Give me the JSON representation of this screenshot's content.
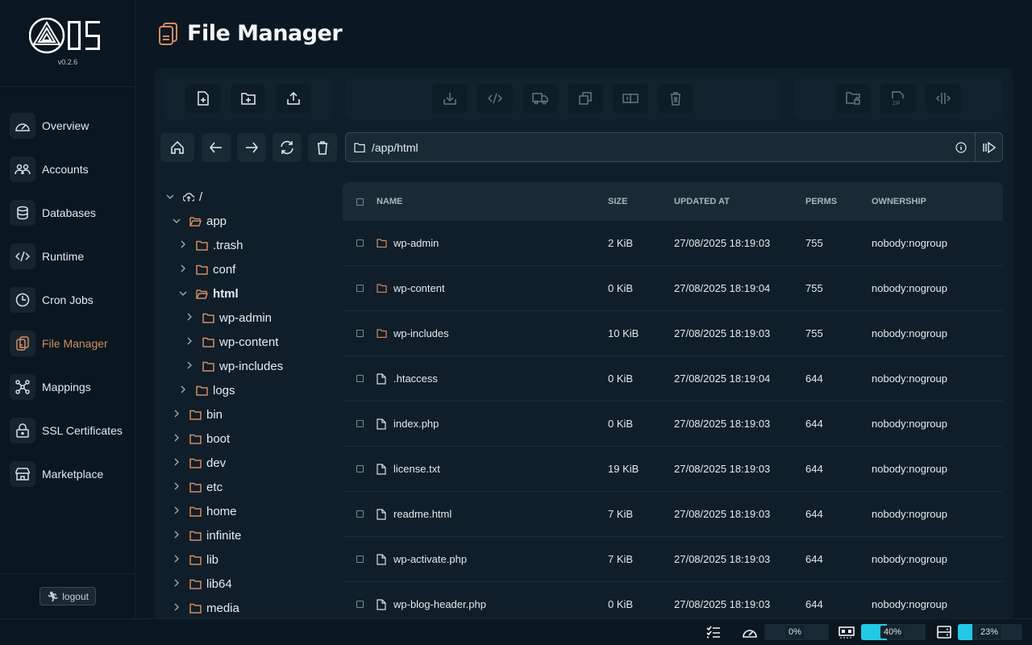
{
  "app": {
    "version": "v0.2.6",
    "logo_text": "OS"
  },
  "sidebar": {
    "items": [
      {
        "label": "Overview",
        "icon": "gauge-icon"
      },
      {
        "label": "Accounts",
        "icon": "users-icon"
      },
      {
        "label": "Databases",
        "icon": "database-icon"
      },
      {
        "label": "Runtime",
        "icon": "code-icon"
      },
      {
        "label": "Cron Jobs",
        "icon": "clock-icon"
      },
      {
        "label": "File Manager",
        "icon": "files-icon",
        "active": true
      },
      {
        "label": "Mappings",
        "icon": "network-icon"
      },
      {
        "label": "SSL Certificates",
        "icon": "lock-icon"
      },
      {
        "label": "Marketplace",
        "icon": "store-icon"
      }
    ],
    "logout_label": "logout"
  },
  "header": {
    "title": "File Manager"
  },
  "toolbar": {
    "group1": [
      "new-file",
      "new-folder",
      "upload"
    ],
    "group2": [
      "download",
      "code-editor",
      "move",
      "copy",
      "rename",
      "delete"
    ],
    "group3": [
      "permissions",
      "compress-zip",
      "extract"
    ]
  },
  "nav": [
    "home",
    "back",
    "forward",
    "refresh",
    "trash"
  ],
  "path": {
    "value": "/app/html"
  },
  "tree": [
    {
      "name": "/",
      "depth": 0,
      "open": true,
      "root": true
    },
    {
      "name": "app",
      "depth": 1,
      "open": true
    },
    {
      "name": ".trash",
      "depth": 2
    },
    {
      "name": "conf",
      "depth": 2
    },
    {
      "name": "html",
      "depth": 2,
      "open": true,
      "bold": true
    },
    {
      "name": "wp-admin",
      "depth": 3
    },
    {
      "name": "wp-content",
      "depth": 3
    },
    {
      "name": "wp-includes",
      "depth": 3
    },
    {
      "name": "logs",
      "depth": 2
    },
    {
      "name": "bin",
      "depth": 1
    },
    {
      "name": "boot",
      "depth": 1
    },
    {
      "name": "dev",
      "depth": 1
    },
    {
      "name": "etc",
      "depth": 1
    },
    {
      "name": "home",
      "depth": 1
    },
    {
      "name": "infinite",
      "depth": 1
    },
    {
      "name": "lib",
      "depth": 1
    },
    {
      "name": "lib64",
      "depth": 1
    },
    {
      "name": "media",
      "depth": 1
    }
  ],
  "table": {
    "headers": {
      "name": "NAME",
      "size": "SIZE",
      "updated": "UPDATED AT",
      "perms": "PERMS",
      "ownership": "OWNERSHIP"
    },
    "rows": [
      {
        "type": "folder",
        "name": "wp-admin",
        "size": "2 KiB",
        "updated": "27/08/2025 18:19:03",
        "perms": "755",
        "ownership": "nobody:nogroup"
      },
      {
        "type": "folder",
        "name": "wp-content",
        "size": "0 KiB",
        "updated": "27/08/2025 18:19:04",
        "perms": "755",
        "ownership": "nobody:nogroup"
      },
      {
        "type": "folder",
        "name": "wp-includes",
        "size": "10 KiB",
        "updated": "27/08/2025 18:19:03",
        "perms": "755",
        "ownership": "nobody:nogroup"
      },
      {
        "type": "file",
        "name": ".htaccess",
        "size": "0 KiB",
        "updated": "27/08/2025 18:19:04",
        "perms": "644",
        "ownership": "nobody:nogroup"
      },
      {
        "type": "file",
        "name": "index.php",
        "size": "0 KiB",
        "updated": "27/08/2025 18:19:03",
        "perms": "644",
        "ownership": "nobody:nogroup"
      },
      {
        "type": "file",
        "name": "license.txt",
        "size": "19 KiB",
        "updated": "27/08/2025 18:19:03",
        "perms": "644",
        "ownership": "nobody:nogroup"
      },
      {
        "type": "file",
        "name": "readme.html",
        "size": "7 KiB",
        "updated": "27/08/2025 18:19:03",
        "perms": "644",
        "ownership": "nobody:nogroup"
      },
      {
        "type": "file",
        "name": "wp-activate.php",
        "size": "7 KiB",
        "updated": "27/08/2025 18:19:03",
        "perms": "644",
        "ownership": "nobody:nogroup"
      },
      {
        "type": "file",
        "name": "wp-blog-header.php",
        "size": "0 KiB",
        "updated": "27/08/2025 18:19:03",
        "perms": "644",
        "ownership": "nobody:nogroup"
      }
    ]
  },
  "status": {
    "cpu": {
      "label": "0%",
      "value": 0
    },
    "memory": {
      "label": "40%",
      "value": 40
    },
    "storage": {
      "label": "23%",
      "value": 23
    }
  },
  "colors": {
    "accent": "#d38a63",
    "meter": "#22c9e5",
    "background": "#0b1822"
  }
}
